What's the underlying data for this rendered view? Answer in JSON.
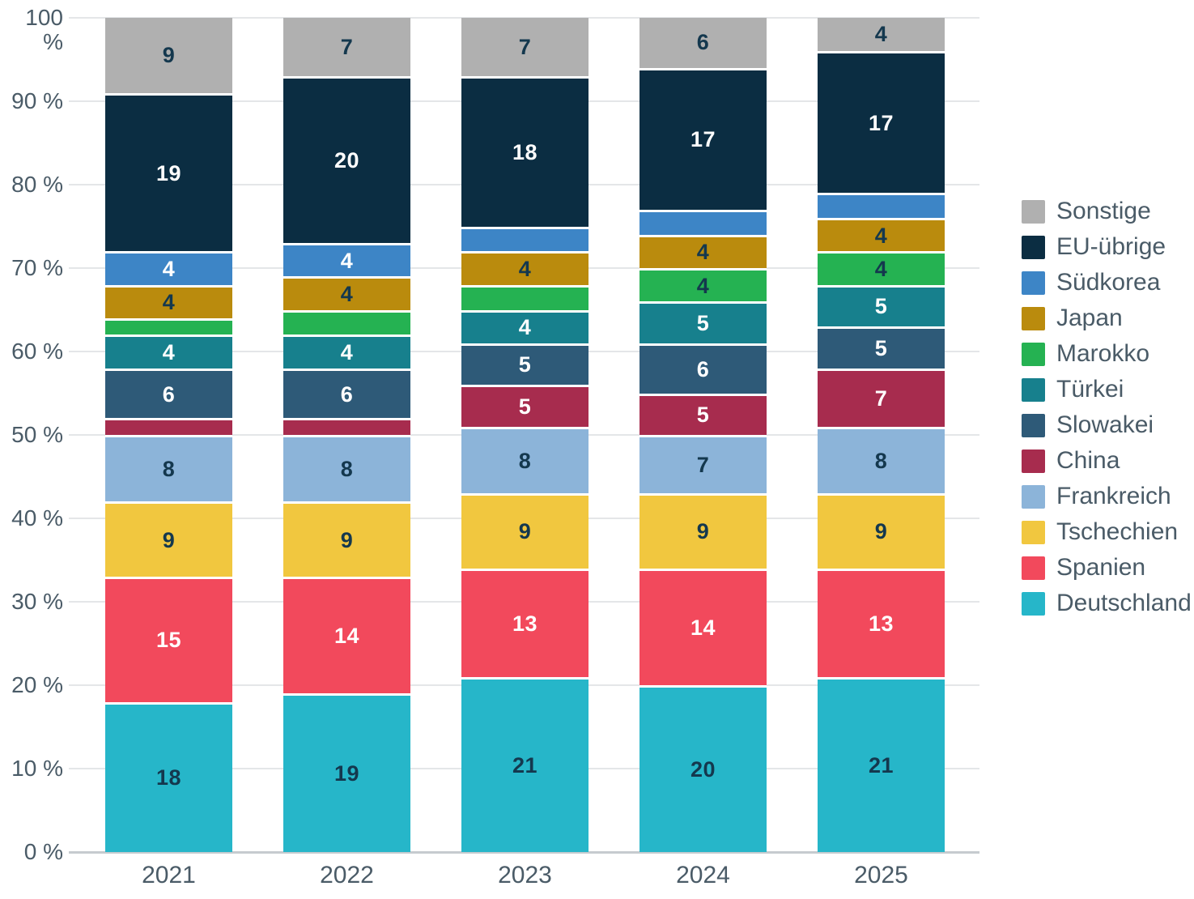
{
  "chart_data": {
    "type": "bar",
    "stacked": true,
    "unit": "%",
    "title": "",
    "xlabel": "",
    "ylabel": "",
    "ylim": [
      0,
      100
    ],
    "grid": true,
    "legend_position": "right",
    "categories": [
      "2021",
      "2022",
      "2023",
      "2024",
      "2025"
    ],
    "yticks": [
      "0 %",
      "10 %",
      "20 %",
      "30 %",
      "40 %",
      "50 %",
      "60 %",
      "70 %",
      "80 %",
      "90 %",
      "100 %"
    ],
    "series": [
      {
        "name": "Deutschland",
        "color": "#26b6c9",
        "label_color": "#14384e",
        "values": [
          18,
          19,
          21,
          20,
          21
        ]
      },
      {
        "name": "Spanien",
        "color": "#f2495c",
        "label_color": "#ffffff",
        "values": [
          15,
          14,
          13,
          14,
          13
        ]
      },
      {
        "name": "Tschechien",
        "color": "#f1c73f",
        "label_color": "#14384e",
        "values": [
          9,
          9,
          9,
          9,
          9
        ]
      },
      {
        "name": "Frankreich",
        "color": "#8cb4d9",
        "label_color": "#14384e",
        "values": [
          8,
          8,
          8,
          7,
          8
        ]
      },
      {
        "name": "China",
        "color": "#a72c4e",
        "label_color": "#ffffff",
        "values": [
          2,
          2,
          5,
          5,
          7
        ]
      },
      {
        "name": "Slowakei",
        "color": "#2e5a78",
        "label_color": "#ffffff",
        "values": [
          6,
          6,
          5,
          6,
          5
        ]
      },
      {
        "name": "Türkei",
        "color": "#17808d",
        "label_color": "#ffffff",
        "values": [
          4,
          4,
          4,
          5,
          5
        ]
      },
      {
        "name": "Marokko",
        "color": "#25b252",
        "label_color": "#14384e",
        "values": [
          2,
          3,
          3,
          4,
          4
        ]
      },
      {
        "name": "Japan",
        "color": "#ba8b0d",
        "label_color": "#14384e",
        "values": [
          4,
          4,
          4,
          4,
          4
        ]
      },
      {
        "name": "Südkorea",
        "color": "#3d85c6",
        "label_color": "#ffffff",
        "values": [
          4,
          4,
          3,
          3,
          3
        ]
      },
      {
        "name": "EU-übrige",
        "color": "#0b2d42",
        "label_color": "#ffffff",
        "values": [
          19,
          20,
          18,
          17,
          17
        ]
      },
      {
        "name": "Sonstige",
        "color": "#b0b0b0",
        "label_color": "#14384e",
        "values": [
          9,
          7,
          7,
          6,
          4
        ]
      }
    ],
    "legend_entries": [
      "Sonstige",
      "EU-übrige",
      "Südkorea",
      "Japan",
      "Marokko",
      "Türkei",
      "Slowakei",
      "China",
      "Frankreich",
      "Tschechien",
      "Spanien",
      "Deutschland"
    ]
  }
}
